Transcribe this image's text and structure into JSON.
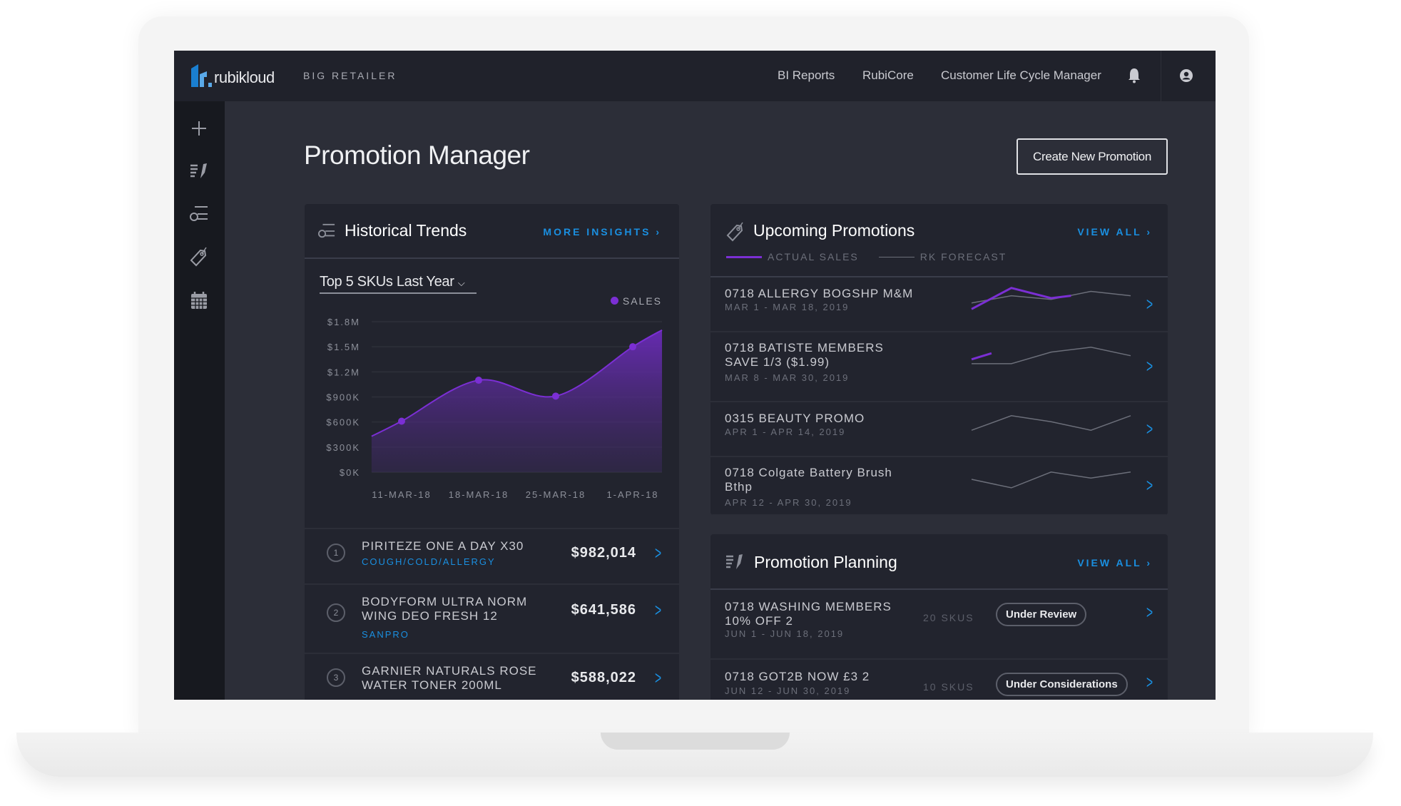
{
  "header": {
    "brand": "rubikloud",
    "client": "BIG RETAILER",
    "nav": [
      "BI Reports",
      "RubiCore",
      "Customer Life Cycle Manager"
    ]
  },
  "sidebar": [
    "add",
    "promotion-planning",
    "historical-trends",
    "promotions",
    "calendar"
  ],
  "page": {
    "title": "Promotion Manager",
    "create_button": "Create New Promotion"
  },
  "historical": {
    "title": "Historical Trends",
    "more": "MORE INSIGHTS",
    "dropdown": "Top 5 SKUs Last Year",
    "legend": "SALES",
    "items": [
      {
        "rank": "1",
        "name": "PIRITEZE ONE A DAY X30",
        "category": "COUGH/COLD/ALLERGY",
        "amount": "$982,014"
      },
      {
        "rank": "2",
        "name": "BODYFORM ULTRA NORM WING DEO FRESH 12",
        "category": "SANPRO",
        "amount": "$641,586"
      },
      {
        "rank": "3",
        "name": "GARNIER NATURALS ROSE WATER TONER 200ML",
        "category": "",
        "amount": "$588,022"
      }
    ]
  },
  "chart_data": {
    "type": "area",
    "title": "Top 5 SKUs Last Year",
    "xlabel": "",
    "ylabel": "Sales",
    "categories": [
      "11-MAR-18",
      "18-MAR-18",
      "25-MAR-18",
      "1-APR-18"
    ],
    "yticks": [
      "$0K",
      "$300K",
      "$600K",
      "$900K",
      "$1.2M",
      "$1.5M",
      "$1.8M"
    ],
    "ylim": [
      0,
      1800000
    ],
    "series": [
      {
        "name": "SALES",
        "color": "#7b2fd4",
        "x": [
          -0.39,
          0,
          1,
          2,
          3,
          3.38
        ],
        "values": [
          430000,
          610000,
          1100000,
          910000,
          1500000,
          1700000
        ],
        "markers": [
          1,
          2,
          3,
          4
        ]
      }
    ],
    "grid": true,
    "legend": "top-right"
  },
  "upcoming": {
    "title": "Upcoming Promotions",
    "view_all": "VIEW ALL",
    "legend_actual": "ACTUAL SALES",
    "legend_forecast": "RK FORECAST",
    "items": [
      {
        "name": "0718 ALLERGY BOGSHP M&M",
        "dates": "MAR 1 - MAR 18, 2019",
        "forecast": [
          0.3,
          0.6,
          0.45,
          0.78,
          0.6
        ],
        "actual": [
          0.05,
          0.92,
          0.5,
          0.6
        ]
      },
      {
        "name": "0718 BATISTE MEMBERS SAVE 1/3 ($1.99)",
        "dates": "MAR 8 - MAR 30, 2019",
        "forecast": [
          0.12,
          0.12,
          0.6,
          0.8,
          0.45
        ],
        "actual": [
          0.3,
          0.55
        ]
      },
      {
        "name": "0315 BEAUTY PROMO",
        "dates": "APR 1 - APR 14, 2019",
        "forecast": [
          0.2,
          0.8,
          0.55,
          0.2,
          0.8
        ],
        "actual": []
      },
      {
        "name": "0718 Colgate Battery Brush Bthp",
        "dates": "APR 12 - APR 30, 2019",
        "forecast": [
          0.5,
          0.15,
          0.8,
          0.55,
          0.8
        ],
        "actual": []
      }
    ]
  },
  "planning": {
    "title": "Promotion Planning",
    "view_all": "VIEW ALL",
    "items": [
      {
        "name": "0718 WASHING MEMBERS 10% OFF 2",
        "dates": "JUN 1 - JUN 18, 2019",
        "skus": "20 SKUS",
        "status": "Under Review"
      },
      {
        "name": "0718 GOT2B NOW £3 2",
        "dates": "JUN 12 - JUN 30, 2019",
        "skus": "10 SKUS",
        "status": "Under Considerations"
      }
    ]
  },
  "colors": {
    "accent": "#1a8fe0",
    "purple": "#7b2fd4"
  }
}
